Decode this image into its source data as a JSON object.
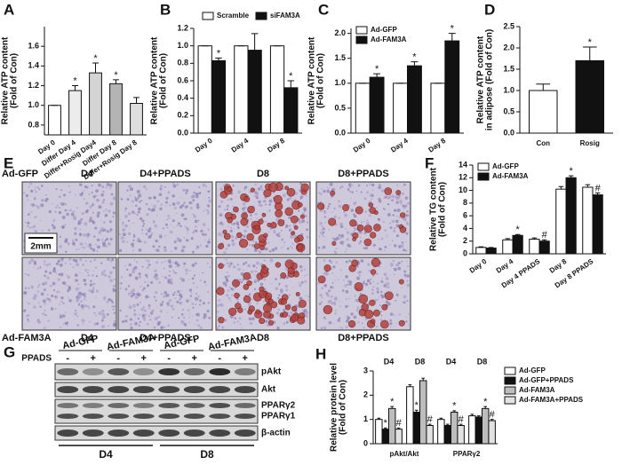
{
  "chart_data": [
    {
      "type": "bar",
      "panel": "A",
      "ylabel": [
        "Relative ATP content",
        "(Fold of Con)"
      ],
      "categories": [
        "Day 0",
        "Differ Day 4",
        "Differ+Rosig Day4",
        "Differ Day 8",
        "Differ+Rosig Day 8"
      ],
      "values": [
        1.0,
        1.15,
        1.33,
        1.22,
        1.02
      ],
      "errors": [
        0.0,
        0.05,
        0.1,
        0.04,
        0.06
      ],
      "colors": [
        "#ffffff",
        "#ececec",
        "#d4d4d4",
        "#b4b4b4",
        "#dedede"
      ],
      "significance": [
        null,
        "*",
        "*",
        "*",
        null
      ],
      "ylim": [
        0.7,
        1.8
      ],
      "yticks": [
        {
          "value": 0.8,
          "label": "0.8"
        },
        {
          "value": 1,
          "label": "1.0"
        },
        1.2,
        1.4,
        1.6
      ]
    },
    {
      "type": "bar",
      "panel": "B",
      "ylabel": [
        "Relative ATP content",
        "(Fold of Con)"
      ],
      "categories": [
        "Day 0",
        "Day 4",
        "Day 8"
      ],
      "legend": "top",
      "series": [
        {
          "name": "Scramble",
          "color": "#ffffff",
          "values": [
            1.0,
            1.0,
            1.0
          ],
          "errors": [
            0.0,
            0.0,
            0.0
          ]
        },
        {
          "name": "siFAM3A",
          "color": "#111111",
          "values": [
            0.83,
            0.95,
            0.52
          ],
          "errors": [
            0.03,
            0.19,
            0.08
          ],
          "significance": [
            "*",
            null,
            "*"
          ]
        }
      ],
      "ylim": [
        0,
        1.2
      ],
      "yticks": [
        {
          "value": 0,
          "label": "0.0"
        },
        0.2,
        0.4,
        0.6,
        0.8,
        {
          "value": 1,
          "label": "1.0"
        },
        1.2
      ]
    },
    {
      "type": "bar",
      "panel": "C",
      "ylabel": [
        "Relative ATP content",
        "(Fold of Con)"
      ],
      "categories": [
        "Day 0",
        "Day 4",
        "Day 8"
      ],
      "legend": "top-left",
      "series": [
        {
          "name": "Ad-GFP",
          "color": "#ffffff",
          "values": [
            1.0,
            1.0,
            1.0
          ],
          "errors": [
            0.0,
            0.0,
            0.0
          ]
        },
        {
          "name": "Ad-FAM3A",
          "color": "#111111",
          "values": [
            1.12,
            1.35,
            1.85
          ],
          "errors": [
            0.07,
            0.08,
            0.15
          ],
          "significance": [
            "*",
            "*",
            "*"
          ]
        }
      ],
      "ylim": [
        0,
        2.1
      ],
      "yticks": [
        {
          "value": 0,
          "label": "0.0"
        },
        0.5,
        {
          "value": 1,
          "label": "1.0"
        },
        1.5,
        {
          "value": 2,
          "label": "2.0"
        }
      ]
    },
    {
      "type": "bar",
      "panel": "D",
      "ylabel": [
        "Relative ATP content",
        "in adipose (Fold of Con)"
      ],
      "categories": [
        "Con",
        "Rosig"
      ],
      "values": [
        1.0,
        1.7
      ],
      "errors": [
        0.15,
        0.32
      ],
      "colors": [
        "#ffffff",
        "#111111"
      ],
      "significance": [
        null,
        "*"
      ],
      "ylim": [
        0,
        2.5
      ],
      "yticks": [
        {
          "value": 0,
          "label": "0.0"
        },
        0.5,
        {
          "value": 1,
          "label": "1.0"
        },
        1.5,
        {
          "value": 2,
          "label": "2.0"
        },
        2.5
      ]
    },
    {
      "type": "bar",
      "panel": "F",
      "ylabel": [
        "Relative TG content",
        "(Fold of Con)"
      ],
      "categories": [
        "Day 0",
        "Day 4",
        "Day 4 PPADS",
        "Day 8",
        "Day 8 PPADS"
      ],
      "legend": "top-left",
      "series": [
        {
          "name": "Ad-GFP",
          "color": "#ffffff",
          "values": [
            1.0,
            2.2,
            2.3,
            10.2,
            10.5
          ],
          "errors": [
            0.1,
            0.2,
            0.2,
            0.4,
            0.4
          ]
        },
        {
          "name": "Ad-FAM3A",
          "color": "#111111",
          "values": [
            0.9,
            2.9,
            2.0,
            12.0,
            9.3
          ],
          "errors": [
            0.1,
            0.15,
            0.2,
            0.3,
            0.3
          ],
          "significance": [
            null,
            "*",
            "#",
            "*",
            "#"
          ]
        }
      ],
      "ylim": [
        0,
        14
      ],
      "yticks": [
        0,
        2,
        4,
        6,
        8,
        10,
        12,
        14
      ]
    },
    {
      "type": "bar",
      "panel": "H",
      "ylabel": [
        "Relative protein level",
        "(Fold of Con)"
      ],
      "categories": [
        "D4",
        "D8",
        "D4",
        "D8"
      ],
      "category_groups": [
        "pAkt/Akt",
        "PPARγ2"
      ],
      "legend": "right",
      "series": [
        {
          "name": "Ad-GFP",
          "color": "#ffffff",
          "values": [
            1.0,
            2.35,
            1.0,
            1.15
          ],
          "errors": [
            0.05,
            0.08,
            0.05,
            0.06
          ]
        },
        {
          "name": "Ad-GFP+PPADS",
          "color": "#111111",
          "values": [
            0.6,
            1.3,
            0.75,
            1.1
          ],
          "errors": [
            0.05,
            0.08,
            0.05,
            0.05
          ],
          "significance": [
            "*",
            "*",
            null,
            null
          ]
        },
        {
          "name": "Ad-FAM3A",
          "color": "#bdbdbd",
          "values": [
            1.45,
            2.6,
            1.3,
            1.45
          ],
          "errors": [
            0.08,
            0.1,
            0.06,
            0.08
          ],
          "significance": [
            "*",
            null,
            "*",
            "*"
          ]
        },
        {
          "name": "Ad-FAM3A+PPADS",
          "color": "#e2e2e2",
          "values": [
            0.6,
            0.75,
            0.75,
            0.95
          ],
          "errors": [
            0.05,
            0.05,
            0.05,
            0.05
          ],
          "significance": [
            "#",
            "#",
            "#",
            "#"
          ]
        }
      ],
      "ylim": [
        0,
        3
      ],
      "yticks": [
        0,
        1,
        2,
        3
      ]
    }
  ],
  "micrographs": {
    "panel": "E",
    "scale_bar": "2mm",
    "rows": [
      {
        "label": "Ad-GFP",
        "columns": [
          "D4",
          "D4+PPADS",
          "D8",
          "D8+PPADS"
        ]
      },
      {
        "label": "Ad-FAM3A",
        "columns": [
          "D4",
          "D4+PPADS",
          "D8",
          "D8+PPADS"
        ]
      }
    ]
  },
  "western_blot": {
    "panel": "G",
    "groups": [
      "Ad-GFP",
      "Ad-FAM3A",
      "Ad-GFP",
      "Ad-FAM3A"
    ],
    "treatment": "PPADS",
    "lanes": [
      "-",
      "+",
      "-",
      "+",
      "-",
      "+",
      "-",
      "+"
    ],
    "bands": [
      "pAkt",
      "Akt",
      "PPARγ2",
      "PPARγ1",
      "β-actin"
    ],
    "days": [
      "D4",
      "D8"
    ]
  }
}
